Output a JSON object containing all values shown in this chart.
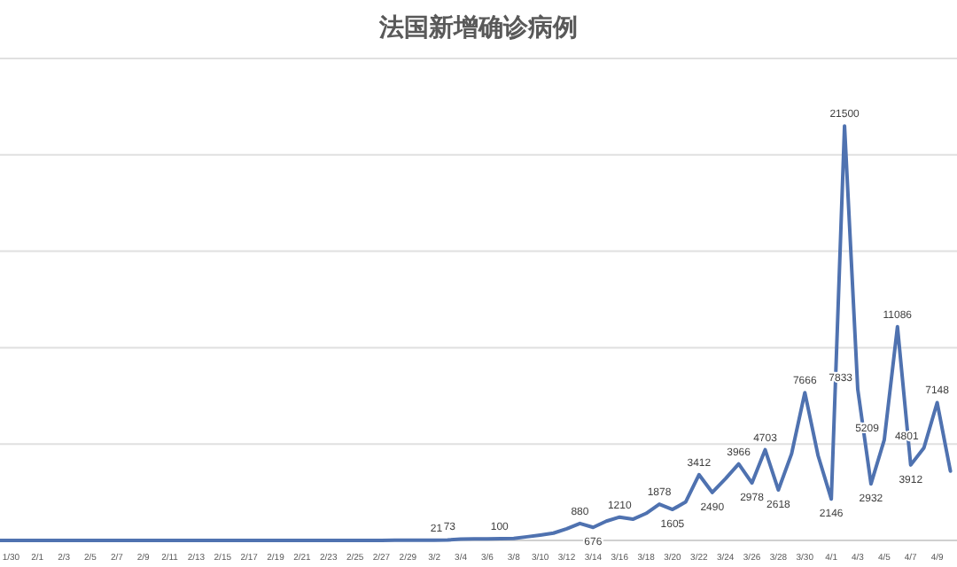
{
  "chart_data": {
    "type": "line",
    "title": "法国新增确诊病例",
    "categories": [
      null,
      "1/30",
      null,
      "2/1",
      null,
      "2/3",
      null,
      "2/5",
      null,
      "2/7",
      null,
      "2/9",
      null,
      "2/11",
      null,
      "2/13",
      null,
      "2/15",
      null,
      "2/17",
      null,
      "2/19",
      null,
      "2/21",
      null,
      "2/23",
      null,
      "2/25",
      null,
      "2/27",
      null,
      "2/29",
      null,
      "3/2",
      null,
      "3/4",
      null,
      "3/6",
      null,
      "3/8",
      null,
      "3/10",
      null,
      "3/12",
      null,
      "3/14",
      null,
      "3/16",
      null,
      "3/18",
      null,
      "3/20",
      null,
      "3/22",
      null,
      "3/24",
      null,
      "3/26",
      null,
      "3/28",
      null,
      "3/30",
      null,
      "4/1",
      null,
      "4/3",
      null,
      "4/5",
      null,
      "4/7",
      null,
      "4/9",
      null
    ],
    "series": [
      {
        "color": "#4f72b0",
        "values": [
          0,
          0,
          0,
          0,
          0,
          0,
          0,
          0,
          0,
          0,
          0,
          0,
          0,
          0,
          0,
          0,
          0,
          0,
          0,
          0,
          0,
          0,
          0,
          0,
          0,
          0,
          0,
          0,
          0,
          5,
          10,
          15,
          10,
          15,
          21,
          73,
          85,
          80,
          90,
          100,
          190,
          280,
          380,
          600,
          880,
          676,
          1000,
          1210,
          1100,
          1400,
          1878,
          1605,
          2000,
          3412,
          2490,
          3200,
          3966,
          2978,
          4703,
          2618,
          4500,
          7666,
          4400,
          2146,
          21500,
          7833,
          2932,
          5209,
          11086,
          3912,
          4801,
          7148,
          3600
        ],
        "value_labels": [
          null,
          null,
          null,
          null,
          null,
          null,
          null,
          null,
          null,
          null,
          null,
          null,
          null,
          null,
          null,
          null,
          null,
          null,
          null,
          null,
          null,
          null,
          null,
          null,
          null,
          null,
          null,
          null,
          null,
          null,
          null,
          null,
          null,
          null,
          "21",
          "73",
          null,
          null,
          null,
          "100",
          null,
          null,
          null,
          null,
          "880",
          "676",
          null,
          "1210",
          null,
          null,
          "1878",
          "1605",
          null,
          "3412",
          "2490",
          null,
          "3966",
          "2978",
          "4703",
          "2618",
          null,
          "7666",
          null,
          "2146",
          "21500",
          "7833",
          "2932",
          "5209",
          "11086",
          "3912",
          "4801",
          "7148",
          null
        ]
      }
    ],
    "ylim": [
      0,
      25000
    ],
    "yticks": [
      {
        "value": 0,
        "label": null
      },
      {
        "value": 5000,
        "label": null
      },
      {
        "value": 10000,
        "label": null
      },
      {
        "value": 15000,
        "label": null
      },
      {
        "value": 20000,
        "label": null
      },
      {
        "value": 25000,
        "label": null
      }
    ],
    "tick_labels": "x",
    "grid": "y",
    "marker": "none",
    "line_style": "solid"
  }
}
